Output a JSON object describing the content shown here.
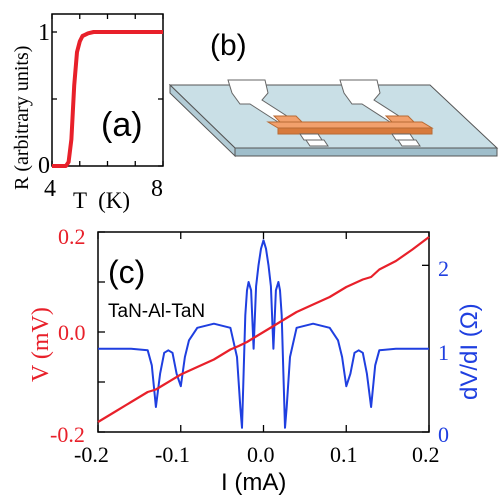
{
  "colors": {
    "red": "#e8202a",
    "blue": "#1f3fe0",
    "axis": "#000000",
    "substrate_top": "#c9dfe6",
    "substrate_side": "#9fbecb",
    "wire": "#f2a06c",
    "wire_dark": "#d77a3c",
    "pad": "#ffffff"
  },
  "panel_a": {
    "label": "(a)",
    "ylabel": "R (arbitrary units)",
    "xlabel": "T  (K)"
  },
  "panel_b": {
    "label": "(b)"
  },
  "panel_c": {
    "label": "(c)",
    "annotation": "TaN-Al-TaN",
    "xlabel": "I (mA)",
    "ylabel_left": "V (mV)",
    "ylabel_right": "dV/dI (Ω)"
  },
  "chart_data": [
    {
      "type": "line",
      "panel": "a",
      "title": "",
      "xlabel": "T (K)",
      "ylabel": "R (arbitrary units)",
      "xlim": [
        4,
        8
      ],
      "ylim": [
        0,
        1
      ],
      "x_ticks": [
        "4",
        "8"
      ],
      "y_ticks": [
        "0",
        "1"
      ],
      "series": [
        {
          "color": "#e8202a",
          "x": [
            4.0,
            4.5,
            4.6,
            4.7,
            4.75,
            4.8,
            4.9,
            5.0,
            5.1,
            5.2,
            5.3,
            5.5,
            6.0,
            7.0,
            8.0
          ],
          "y": [
            0.0,
            0.0,
            0.03,
            0.2,
            0.4,
            0.6,
            0.85,
            0.93,
            0.97,
            0.98,
            0.99,
            1.0,
            1.0,
            1.0,
            1.0
          ]
        }
      ]
    },
    {
      "type": "line",
      "panel": "c",
      "title": "",
      "xlabel": "I (mA)",
      "ylabel_left": "V (mV)",
      "ylabel_right": "dV/dI (Ω)",
      "xlim": [
        -0.2,
        0.2
      ],
      "ylim_left": [
        -0.2,
        0.2
      ],
      "ylim_right": [
        0,
        2.4
      ],
      "x_ticks": [
        "-0.2",
        "-0.1",
        "0.0",
        "0.1",
        "0.2"
      ],
      "y_ticks_left": [
        "-0.2",
        "0.0",
        "0.2"
      ],
      "y_ticks_right": [
        "0",
        "1",
        "2"
      ],
      "series": [
        {
          "axis": "left",
          "color": "#e8202a",
          "x": [
            -0.2,
            -0.18,
            -0.16,
            -0.14,
            -0.13,
            -0.12,
            -0.1,
            -0.08,
            -0.06,
            -0.04,
            -0.03,
            -0.02,
            -0.01,
            0.0,
            0.01,
            0.02,
            0.03,
            0.04,
            0.06,
            0.08,
            0.1,
            0.12,
            0.13,
            0.14,
            0.16,
            0.18,
            0.2
          ],
          "y": [
            -0.18,
            -0.16,
            -0.14,
            -0.12,
            -0.115,
            -0.105,
            -0.085,
            -0.07,
            -0.055,
            -0.035,
            -0.028,
            -0.02,
            -0.01,
            0.0,
            0.01,
            0.02,
            0.03,
            0.04,
            0.055,
            0.07,
            0.09,
            0.105,
            0.11,
            0.125,
            0.142,
            0.165,
            0.19
          ]
        },
        {
          "axis": "right",
          "color": "#1f3fe0",
          "x": [
            -0.2,
            -0.16,
            -0.14,
            -0.135,
            -0.13,
            -0.125,
            -0.12,
            -0.115,
            -0.11,
            -0.105,
            -0.1,
            -0.095,
            -0.09,
            -0.08,
            -0.06,
            -0.04,
            -0.032,
            -0.028,
            -0.026,
            -0.024,
            -0.022,
            -0.02,
            -0.018,
            -0.015,
            -0.012,
            -0.009,
            -0.006,
            -0.003,
            0.0,
            0.003,
            0.006,
            0.009,
            0.012,
            0.015,
            0.018,
            0.02,
            0.022,
            0.024,
            0.026,
            0.028,
            0.032,
            0.04,
            0.06,
            0.08,
            0.09,
            0.095,
            0.1,
            0.105,
            0.11,
            0.115,
            0.12,
            0.125,
            0.13,
            0.135,
            0.14,
            0.16,
            0.2
          ],
          "y": [
            1.0,
            1.0,
            0.98,
            0.8,
            0.3,
            0.7,
            0.95,
            0.98,
            0.95,
            0.7,
            0.55,
            0.9,
            1.1,
            1.25,
            1.3,
            1.25,
            0.9,
            0.3,
            0.05,
            0.7,
            1.4,
            1.7,
            1.8,
            1.7,
            1.0,
            1.75,
            2.0,
            2.2,
            2.3,
            2.2,
            2.0,
            1.75,
            1.0,
            1.7,
            1.8,
            1.7,
            1.4,
            0.7,
            0.05,
            0.3,
            0.9,
            1.25,
            1.3,
            1.25,
            1.1,
            0.9,
            0.55,
            0.7,
            0.95,
            0.98,
            0.95,
            0.7,
            0.3,
            0.8,
            0.98,
            1.0,
            1.0
          ]
        }
      ]
    }
  ]
}
